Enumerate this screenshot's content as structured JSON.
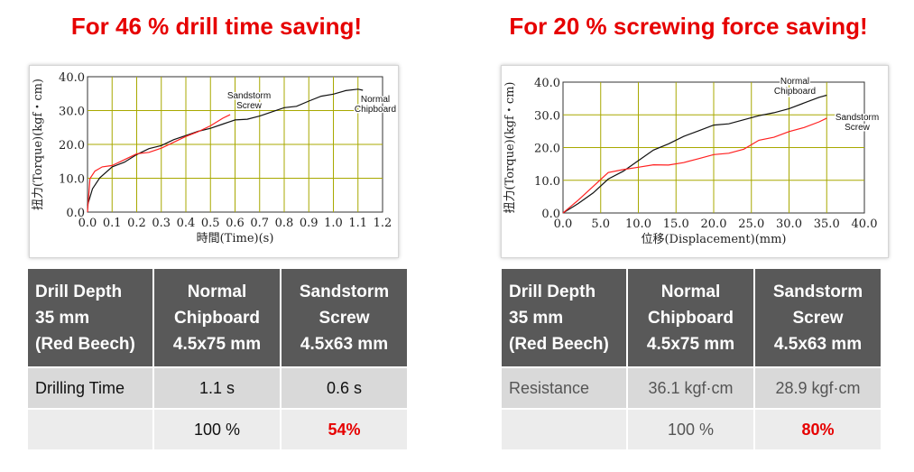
{
  "colors": {
    "headline": "#e60000",
    "table_header_bg": "#595959",
    "series_normal": "#111111",
    "series_sandstorm": "#ff2020",
    "grid": "#a8a800"
  },
  "left": {
    "headline": "For 46 % drill time saving!",
    "table": {
      "header": [
        "Drill Depth\n35 mm\n(Red Beech)",
        "Normal\nChipboard\n4.5x75 mm",
        "Sandstorm\nScrew\n4.5x63 mm"
      ],
      "rows": [
        [
          "Drilling Time",
          "1.1 s",
          "0.6 s"
        ],
        [
          "",
          "100 %",
          "54%"
        ]
      ]
    }
  },
  "right": {
    "headline": "For 20 % screwing force saving!",
    "table": {
      "header": [
        "Drill Depth\n35 mm\n(Red Beech)",
        "Normal\nChipboard\n4.5x75 mm",
        "Sandstorm\nScrew\n4.5x63 mm"
      ],
      "rows": [
        [
          "Resistance",
          "36.1 kgf·cm",
          "28.9 kgf·cm"
        ],
        [
          "",
          "100 %",
          "80%"
        ]
      ]
    }
  },
  "chart_data": [
    {
      "type": "line",
      "xlabel": "時間(Time)(s)",
      "ylabel": "扭力(Torque)(kgf・cm)",
      "xlim": [
        0,
        1.2
      ],
      "ylim": [
        0,
        40
      ],
      "xticks": [
        "0.0",
        "0.1",
        "0.2",
        "0.3",
        "0.4",
        "0.5",
        "0.6",
        "0.7",
        "0.8",
        "0.9",
        "1.0",
        "1.1",
        "1.2"
      ],
      "yticks": [
        "0.0",
        "10.0",
        "20.0",
        "30.0",
        "40.0"
      ],
      "grid": true,
      "series": [
        {
          "name": "Normal Chipboard",
          "label_lines": [
            "Normal",
            "Chipboard"
          ],
          "x": [
            0,
            0.02,
            0.05,
            0.1,
            0.15,
            0.2,
            0.25,
            0.3,
            0.35,
            0.4,
            0.45,
            0.5,
            0.55,
            0.6,
            0.65,
            0.7,
            0.75,
            0.8,
            0.85,
            0.9,
            0.95,
            1.0,
            1.05,
            1.1,
            1.12
          ],
          "y": [
            2,
            7,
            10,
            13,
            15,
            17,
            18.5,
            20,
            21.5,
            22.5,
            23.5,
            25,
            26,
            27,
            27.8,
            28.5,
            29.5,
            30.5,
            31.5,
            32.8,
            34,
            35.2,
            36,
            36.2,
            36
          ]
        },
        {
          "name": "Sandstorm Screw",
          "label_lines": [
            "Sandstorm",
            "Screw"
          ],
          "x": [
            0,
            0.01,
            0.03,
            0.06,
            0.1,
            0.15,
            0.2,
            0.25,
            0.3,
            0.35,
            0.4,
            0.45,
            0.5,
            0.55,
            0.58
          ],
          "y": [
            0,
            10,
            12,
            13,
            14,
            15.5,
            17,
            18,
            19,
            20.5,
            22,
            24,
            25.5,
            27.5,
            28.8
          ]
        }
      ]
    },
    {
      "type": "line",
      "xlabel": "位移(Displacement)(mm)",
      "ylabel": "扭力(Torque)(kgf・cm)",
      "xlim": [
        0,
        40
      ],
      "ylim": [
        0,
        40
      ],
      "xticks": [
        "0.0",
        "5.0",
        "10.0",
        "15.0",
        "20.0",
        "25.0",
        "30.0",
        "35.0",
        "40.0"
      ],
      "yticks": [
        "0.0",
        "10.0",
        "20.0",
        "30.0",
        "40.0"
      ],
      "grid": true,
      "series": [
        {
          "name": "Normal Chipboard",
          "label_lines": [
            "Normal",
            "Chipboard"
          ],
          "x": [
            0,
            2,
            4,
            6,
            8,
            10,
            12,
            14,
            16,
            18,
            20,
            22,
            24,
            26,
            28,
            30,
            32,
            34,
            35
          ],
          "y": [
            0,
            3,
            6,
            10,
            13,
            16,
            19,
            21.5,
            23.5,
            25,
            26.5,
            27.5,
            28.5,
            29.5,
            31,
            32,
            33.5,
            35,
            36
          ]
        },
        {
          "name": "Sandstorm Screw",
          "label_lines": [
            "Sandstorm",
            "Screw"
          ],
          "x": [
            0,
            2,
            4,
            6,
            8,
            10,
            12,
            14,
            16,
            18,
            20,
            22,
            24,
            26,
            28,
            30,
            32,
            34,
            35
          ],
          "y": [
            0,
            4,
            8,
            12,
            13.5,
            14,
            14.5,
            15,
            15.5,
            16.5,
            17.5,
            18.5,
            19.5,
            22,
            23.5,
            25,
            26,
            27.5,
            29
          ]
        }
      ]
    }
  ]
}
